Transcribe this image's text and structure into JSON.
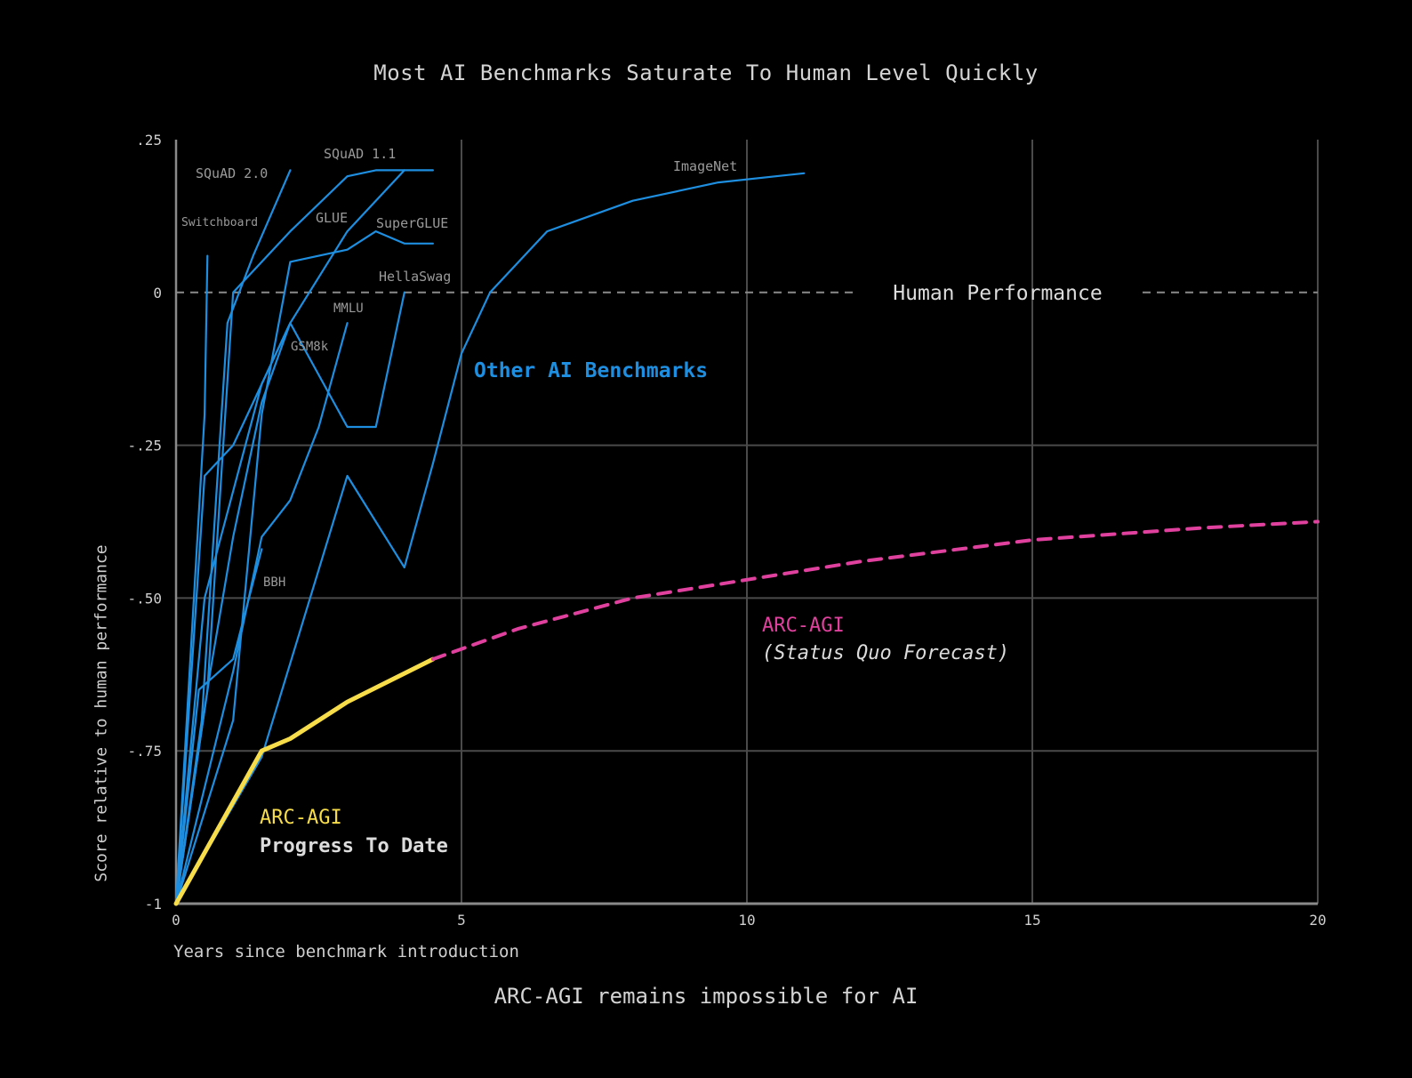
{
  "header": {
    "title": "Most AI Benchmarks Saturate To Human Level Quickly"
  },
  "footer": {
    "subtitle": "ARC-AGI remains impossible for AI"
  },
  "colors": {
    "background": "#000000",
    "benchmark_blue": "#1e8fe0",
    "arc_yellow": "#f7dd4a",
    "forecast_pink": "#e0409e",
    "grid": "#4a4a4a",
    "text": "#d4d4d4",
    "faint_label": "#9a9a9a"
  },
  "chart_data": {
    "type": "line",
    "title": "Most AI Benchmarks Saturate To Human Level Quickly",
    "xlabel": "Years since benchmark introduction",
    "ylabel": "Score relative to human performance",
    "xlim": [
      0,
      20
    ],
    "ylim": [
      -1,
      0.25
    ],
    "xticks": [
      0,
      5,
      10,
      15,
      20
    ],
    "xtick_labels": [
      "0",
      "5",
      "10",
      "15",
      "20"
    ],
    "yticks": [
      -1,
      -0.75,
      -0.5,
      -0.25,
      0,
      0.25
    ],
    "ytick_labels": [
      "-1",
      "-.75",
      "-.50",
      "-.25",
      "0",
      ".25"
    ],
    "grid": true,
    "reference_line": {
      "y": 0,
      "label": "Human Performance"
    },
    "group_label": "Other AI Benchmarks",
    "series": [
      {
        "name": "Switchboard",
        "x": [
          0,
          0.5,
          0.55
        ],
        "y": [
          -1,
          -0.2,
          0.06
        ]
      },
      {
        "name": "SQuAD 2.0",
        "x": [
          0,
          0.45,
          0.9,
          1.35,
          2.0
        ],
        "y": [
          -1,
          -0.7,
          -0.05,
          0.06,
          0.2
        ]
      },
      {
        "name": "SQuAD 1.1",
        "x": [
          0,
          0.55,
          1.0,
          2.0,
          3.0,
          3.5,
          4.5
        ],
        "y": [
          -1,
          -0.65,
          0.0,
          0.1,
          0.19,
          0.2,
          0.2
        ]
      },
      {
        "name": "GLUE",
        "x": [
          0,
          0.5,
          1.5,
          2.0,
          3.0,
          4.0
        ],
        "y": [
          -1,
          -0.5,
          -0.15,
          -0.05,
          0.1,
          0.2
        ]
      },
      {
        "name": "SuperGLUE",
        "x": [
          0,
          1.0,
          1.5,
          2.0,
          3.0,
          3.5,
          4.0,
          4.5
        ],
        "y": [
          -1,
          -0.7,
          -0.2,
          0.05,
          0.07,
          0.1,
          0.08,
          0.08
        ]
      },
      {
        "name": "HellaSwag",
        "x": [
          0,
          0.5,
          1.0,
          2.0,
          3.0,
          3.5,
          4.0
        ],
        "y": [
          -1,
          -0.3,
          -0.25,
          -0.05,
          -0.22,
          -0.22,
          0.0
        ]
      },
      {
        "name": "MMLU",
        "x": [
          0,
          1.0,
          1.5,
          2.0,
          2.5,
          3.0
        ],
        "y": [
          -1,
          -0.62,
          -0.4,
          -0.34,
          -0.22,
          -0.05
        ]
      },
      {
        "name": "GSM8k",
        "x": [
          0,
          0.6,
          1.0,
          1.5,
          2.0
        ],
        "y": [
          -1,
          -0.62,
          -0.4,
          -0.18,
          -0.05
        ]
      },
      {
        "name": "BBH",
        "x": [
          0,
          0.4,
          1.0,
          1.5
        ],
        "y": [
          -1,
          -0.65,
          -0.6,
          -0.42
        ]
      },
      {
        "name": "ImageNet",
        "x": [
          0,
          1.5,
          3.0,
          4.0,
          4.5,
          5.0,
          5.5,
          6.5,
          8.0,
          9.5,
          11.0
        ],
        "y": [
          -1,
          -0.76,
          -0.3,
          -0.45,
          -0.28,
          -0.1,
          0.0,
          0.1,
          0.15,
          0.18,
          0.195
        ]
      },
      {
        "name": "ARC-AGI Progress To Date",
        "x": [
          0,
          1.5,
          2.0,
          3.0,
          4.5
        ],
        "y": [
          -1,
          -0.75,
          -0.73,
          -0.67,
          -0.6
        ]
      },
      {
        "name": "ARC-AGI (Status Quo Forecast)",
        "x": [
          4.5,
          6,
          8,
          10,
          12,
          15,
          18,
          20
        ],
        "y": [
          -0.6,
          -0.55,
          -0.5,
          -0.47,
          -0.44,
          -0.405,
          -0.385,
          -0.375
        ]
      }
    ],
    "annotations": {
      "arc_progress": {
        "line1": "ARC-AGI",
        "line2": "Progress To Date"
      },
      "arc_forecast": {
        "line1": "ARC-AGI",
        "line2": "(Status Quo Forecast)"
      }
    }
  }
}
